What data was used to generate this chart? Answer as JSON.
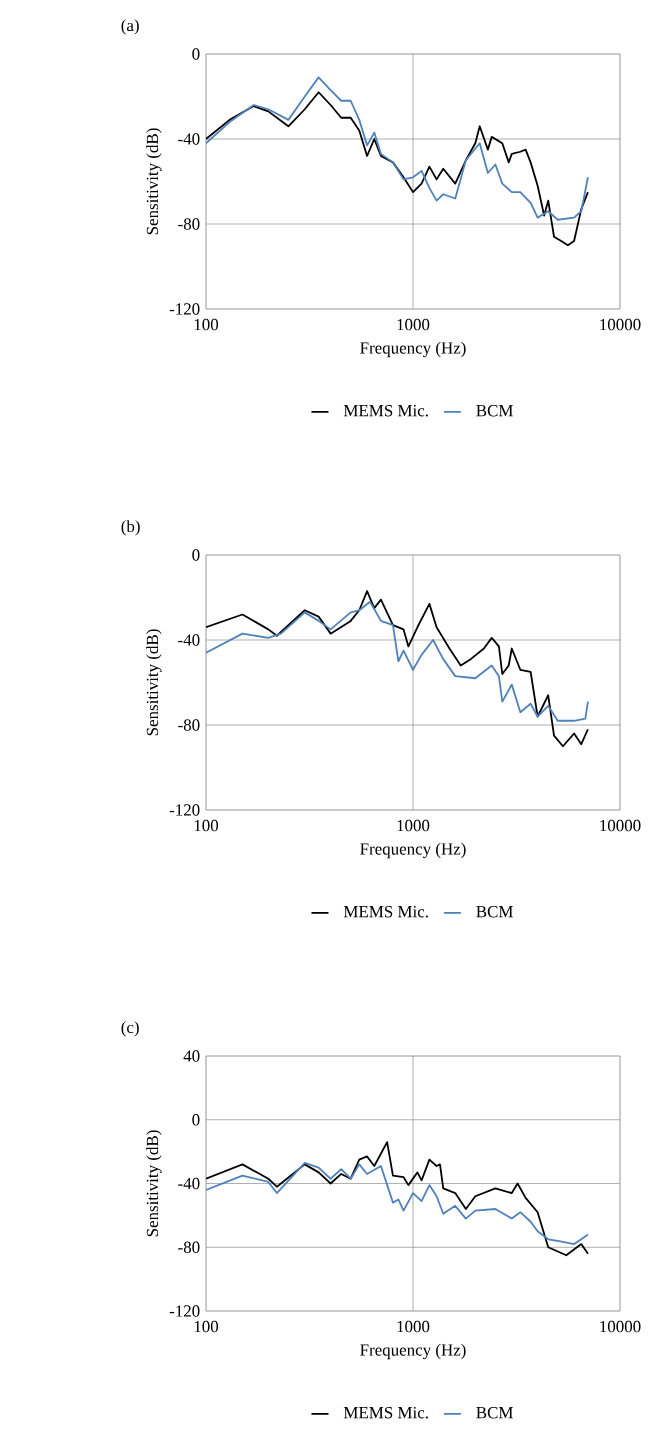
{
  "chart_data": [
    {
      "type": "line",
      "title": "(a)",
      "xlabel": "Frequency (Hz)",
      "ylabel": "Sensitivity (dB)",
      "log": "x",
      "grid": true,
      "legend": "bottom",
      "xlim": [
        100,
        10000
      ],
      "xticks": [
        100,
        1000,
        10000
      ],
      "ylim": [
        -120,
        0
      ],
      "yticks": [
        -120,
        -80,
        -40,
        0
      ],
      "series": [
        {
          "name": "MEMS Mic.",
          "color": "#000000",
          "x": [
            100,
            130,
            170,
            200,
            250,
            300,
            350,
            400,
            450,
            500,
            550,
            600,
            650,
            700,
            800,
            900,
            1000,
            1100,
            1200,
            1300,
            1400,
            1600,
            1800,
            2000,
            2100,
            2300,
            2400,
            2700,
            2900,
            3000,
            3300,
            3500,
            3700,
            4000,
            4300,
            4500,
            4800,
            5200,
            5600,
            6000,
            6500,
            7000
          ],
          "values": [
            -40,
            -31,
            -24.5,
            -27,
            -34,
            -26,
            -18,
            -24,
            -30,
            -30,
            -36,
            -48,
            -40,
            -48,
            -51,
            -58,
            -65,
            -61,
            -53,
            -59,
            -54,
            -61,
            -50,
            -42,
            -34,
            -45,
            -39,
            -42,
            -51,
            -47,
            -46,
            -45,
            -51,
            -62,
            -76,
            -69,
            -86,
            -88,
            -90,
            -88,
            -73,
            -65
          ]
        },
        {
          "name": "BCM",
          "color": "#4f81bd",
          "x": [
            100,
            130,
            170,
            200,
            250,
            300,
            350,
            400,
            450,
            500,
            550,
            600,
            650,
            700,
            800,
            900,
            1000,
            1100,
            1200,
            1300,
            1400,
            1600,
            1800,
            2100,
            2300,
            2500,
            2700,
            3000,
            3300,
            3700,
            4000,
            4500,
            5000,
            6000,
            6500,
            7000
          ],
          "values": [
            -42,
            -32,
            -24,
            -26,
            -31,
            -20,
            -11,
            -17,
            -22,
            -22,
            -31,
            -43,
            -37,
            -47,
            -51,
            -59,
            -58,
            -55,
            -63,
            -69,
            -66,
            -68,
            -50,
            -42,
            -56,
            -52,
            -61,
            -65,
            -65,
            -70,
            -77,
            -74,
            -78,
            -77,
            -74,
            -58
          ]
        }
      ]
    },
    {
      "type": "line",
      "title": "(b)",
      "xlabel": "Frequency (Hz)",
      "ylabel": "Sensitivity (dB)",
      "log": "x",
      "grid": true,
      "legend": "bottom",
      "xlim": [
        100,
        10000
      ],
      "xticks": [
        100,
        1000,
        10000
      ],
      "ylim": [
        -120,
        0
      ],
      "yticks": [
        -120,
        -80,
        -40,
        0
      ],
      "series": [
        {
          "name": "MEMS Mic.",
          "color": "#000000",
          "x": [
            100,
            150,
            200,
            220,
            300,
            350,
            400,
            500,
            550,
            600,
            650,
            700,
            800,
            900,
            950,
            1050,
            1200,
            1300,
            1500,
            1700,
            1900,
            2200,
            2400,
            2600,
            2700,
            2900,
            3000,
            3300,
            3700,
            4000,
            4500,
            4800,
            5300,
            6000,
            6500,
            7000
          ],
          "values": [
            -34,
            -28,
            -35,
            -38,
            -26,
            -29,
            -37,
            -31,
            -26,
            -17,
            -25,
            -21,
            -33,
            -35,
            -43,
            -34,
            -23,
            -34,
            -44,
            -52,
            -49,
            -44,
            -39,
            -43,
            -56,
            -52,
            -44,
            -54,
            -55,
            -76,
            -66,
            -85,
            -90,
            -84,
            -89,
            -82
          ]
        },
        {
          "name": "BCM",
          "color": "#4f81bd",
          "x": [
            100,
            150,
            200,
            230,
            300,
            350,
            400,
            500,
            550,
            620,
            700,
            800,
            850,
            900,
            1000,
            1100,
            1250,
            1400,
            1600,
            2000,
            2400,
            2600,
            2700,
            3000,
            3300,
            3700,
            4000,
            4500,
            5000,
            6000,
            6800,
            7000
          ],
          "values": [
            -46,
            -37,
            -39,
            -37,
            -27,
            -31,
            -35,
            -27,
            -26,
            -22,
            -31,
            -33,
            -50,
            -45,
            -54,
            -47,
            -40,
            -49,
            -57,
            -58,
            -52,
            -57,
            -69,
            -61,
            -74,
            -70,
            -76,
            -71,
            -78,
            -78,
            -77,
            -69
          ]
        }
      ]
    },
    {
      "type": "line",
      "title": "(c)",
      "xlabel": "Frequency (Hz)",
      "ylabel": "Sensitivity (dB)",
      "log": "x",
      "grid": true,
      "legend": "bottom",
      "xlim": [
        100,
        10000
      ],
      "xticks": [
        100,
        1000,
        10000
      ],
      "ylim": [
        -120,
        40
      ],
      "yticks": [
        -120,
        -80,
        -40,
        0,
        40
      ],
      "series": [
        {
          "name": "MEMS Mic.",
          "color": "#000000",
          "x": [
            100,
            150,
            200,
            220,
            300,
            350,
            400,
            450,
            500,
            550,
            600,
            650,
            750,
            800,
            900,
            950,
            1050,
            1100,
            1200,
            1300,
            1350,
            1400,
            1600,
            1800,
            2000,
            2500,
            3000,
            3200,
            3500,
            4000,
            4500,
            5500,
            6500,
            7000
          ],
          "values": [
            -37,
            -28,
            -37,
            -42,
            -28,
            -33,
            -40,
            -34,
            -37,
            -25,
            -23,
            -29,
            -14,
            -35,
            -36,
            -41,
            -33,
            -38,
            -25,
            -29,
            -28,
            -43,
            -46,
            -56,
            -48,
            -43,
            -46,
            -40,
            -49,
            -58,
            -80,
            -85,
            -78,
            -84
          ]
        },
        {
          "name": "BCM",
          "color": "#4f81bd",
          "x": [
            100,
            150,
            200,
            220,
            300,
            350,
            400,
            450,
            500,
            550,
            600,
            700,
            800,
            850,
            900,
            1000,
            1100,
            1200,
            1300,
            1400,
            1600,
            1800,
            2000,
            2500,
            3000,
            3300,
            3700,
            4000,
            4500,
            5000,
            6000,
            6500,
            7000
          ],
          "values": [
            -44,
            -35,
            -39,
            -46,
            -27,
            -30,
            -37,
            -31,
            -37,
            -28,
            -34,
            -29,
            -52,
            -50,
            -57,
            -46,
            -51,
            -41,
            -48,
            -59,
            -54,
            -62,
            -57,
            -56,
            -62,
            -58,
            -64,
            -70,
            -75,
            -76,
            -78,
            -75,
            -72
          ]
        }
      ]
    }
  ]
}
